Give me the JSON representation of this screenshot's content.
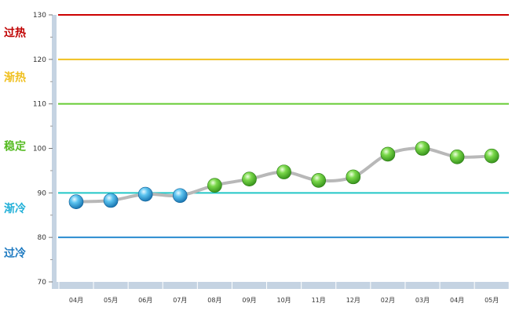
{
  "chart_data": {
    "type": "line",
    "categories": [
      "04月",
      "05月",
      "06月",
      "07月",
      "08月",
      "09月",
      "10月",
      "11月",
      "12月",
      "02月",
      "03月",
      "04月",
      "05月"
    ],
    "values": [
      88.0,
      88.3,
      89.7,
      89.4,
      91.7,
      93.1,
      94.7,
      92.8,
      93.6,
      98.7,
      100.0,
      98.1,
      98.3
    ],
    "ylim": [
      70,
      130
    ],
    "yticks": [
      70,
      80,
      90,
      100,
      110,
      120,
      130
    ],
    "thresholds": [
      {
        "value": 130,
        "color": "#cc0000"
      },
      {
        "value": 120,
        "color": "#f0c020"
      },
      {
        "value": 110,
        "color": "#66cc33"
      },
      {
        "value": 90,
        "color": "#22c6c6"
      },
      {
        "value": 80,
        "color": "#2a8cd0"
      }
    ],
    "zones": [
      {
        "label": "过热",
        "value": 126,
        "color": "#c00000"
      },
      {
        "label": "渐热",
        "value": 116,
        "color": "#f0c020"
      },
      {
        "label": "稳定",
        "value": 100.5,
        "color": "#55bb22"
      },
      {
        "label": "渐冷",
        "value": 86.5,
        "color": "#22b0d8"
      },
      {
        "label": "过冷",
        "value": 76.5,
        "color": "#1a78c0"
      }
    ],
    "point_colors": {
      "cold": "#2a9ad8",
      "stable": "#4cb82c"
    },
    "line_color": "#b8b8b8",
    "grid": false
  }
}
